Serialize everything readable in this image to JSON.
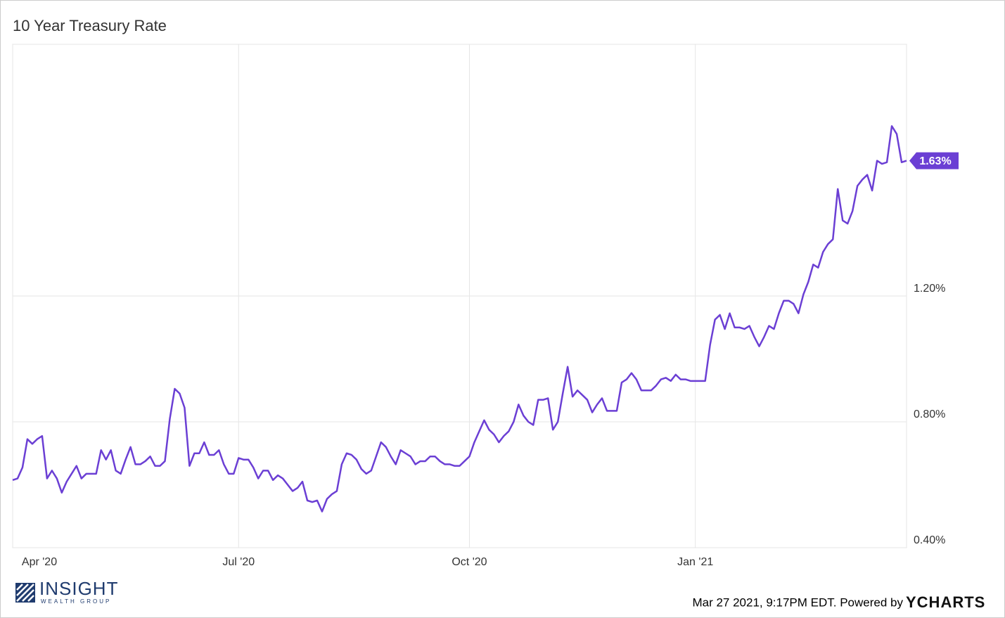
{
  "chart_data": {
    "type": "line",
    "title": "10 Year Treasury Rate",
    "series": [
      {
        "name": "10 Year Treasury Rate",
        "color": "#6b3fd4",
        "values": [
          0.615,
          0.62,
          0.655,
          0.745,
          0.73,
          0.745,
          0.755,
          0.62,
          0.645,
          0.62,
          0.575,
          0.61,
          0.635,
          0.66,
          0.62,
          0.635,
          0.635,
          0.635,
          0.71,
          0.68,
          0.71,
          0.645,
          0.635,
          0.68,
          0.72,
          0.665,
          0.665,
          0.675,
          0.69,
          0.66,
          0.66,
          0.675,
          0.81,
          0.905,
          0.89,
          0.845,
          0.66,
          0.7,
          0.7,
          0.735,
          0.695,
          0.695,
          0.71,
          0.665,
          0.635,
          0.635,
          0.685,
          0.68,
          0.68,
          0.655,
          0.62,
          0.645,
          0.645,
          0.615,
          0.63,
          0.62,
          0.6,
          0.58,
          0.59,
          0.61,
          0.55,
          0.545,
          0.55,
          0.515,
          0.555,
          0.57,
          0.58,
          0.665,
          0.7,
          0.695,
          0.68,
          0.65,
          0.635,
          0.645,
          0.69,
          0.735,
          0.72,
          0.69,
          0.665,
          0.71,
          0.7,
          0.69,
          0.665,
          0.675,
          0.675,
          0.69,
          0.69,
          0.675,
          0.665,
          0.665,
          0.66,
          0.66,
          0.675,
          0.69,
          0.735,
          0.77,
          0.805,
          0.775,
          0.76,
          0.735,
          0.755,
          0.77,
          0.8,
          0.855,
          0.82,
          0.8,
          0.79,
          0.87,
          0.87,
          0.875,
          0.775,
          0.8,
          0.89,
          0.975,
          0.88,
          0.9,
          0.885,
          0.87,
          0.83,
          0.855,
          0.875,
          0.835,
          0.835,
          0.835,
          0.925,
          0.935,
          0.955,
          0.935,
          0.9,
          0.9,
          0.9,
          0.915,
          0.935,
          0.94,
          0.93,
          0.95,
          0.935,
          0.935,
          0.93,
          0.93,
          0.93,
          0.93,
          1.045,
          1.125,
          1.14,
          1.095,
          1.145,
          1.1,
          1.1,
          1.095,
          1.105,
          1.07,
          1.04,
          1.07,
          1.105,
          1.095,
          1.145,
          1.185,
          1.185,
          1.175,
          1.145,
          1.205,
          1.245,
          1.3,
          1.29,
          1.34,
          1.365,
          1.38,
          1.54,
          1.44,
          1.43,
          1.47,
          1.55,
          1.57,
          1.585,
          1.535,
          1.63,
          1.62,
          1.625,
          1.74,
          1.715,
          1.625,
          1.63
        ]
      }
    ],
    "end_label": {
      "value": 1.63,
      "label": "1.63%"
    },
    "ylim": [
      0.4,
      2.0
    ],
    "yticks": [
      {
        "value": 0.4,
        "label": "0.40%"
      },
      {
        "value": 0.8,
        "label": "0.80%"
      },
      {
        "value": 1.2,
        "label": "1.20%"
      }
    ],
    "xticks": [
      {
        "value": 0,
        "label": "Apr '20"
      },
      {
        "value": 46,
        "label": "Jul '20"
      },
      {
        "value": 93,
        "label": "Oct '20"
      },
      {
        "value": 139,
        "label": "Jan '21"
      }
    ],
    "grid": true
  },
  "footer": {
    "logo_name": "INSIGHT",
    "logo_sub": "WEALTH GROUP",
    "timestamp": "Mar 27 2021, 9:17PM EDT. Powered by",
    "brand": "YCHARTS"
  }
}
